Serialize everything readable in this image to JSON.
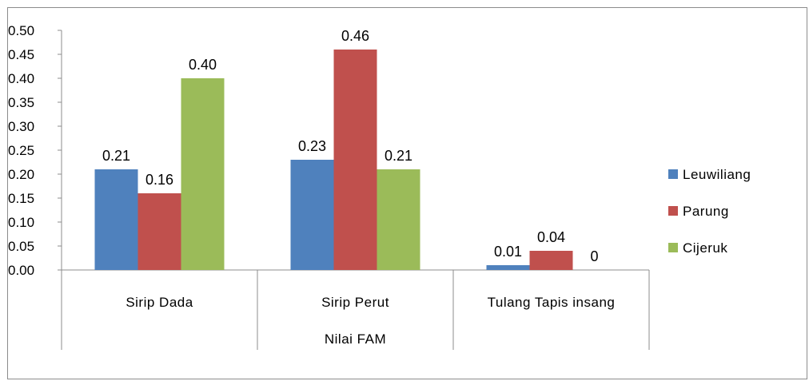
{
  "chart_data": {
    "type": "bar",
    "title": "",
    "xlabel": "Nilai FAM",
    "ylabel": "",
    "ylim": [
      0,
      0.5
    ],
    "yticks": [
      "0.00",
      "0.05",
      "0.10",
      "0.15",
      "0.20",
      "0.25",
      "0.30",
      "0.35",
      "0.40",
      "0.45",
      "0.50"
    ],
    "categories": [
      "Sirip Dada",
      "Sirip Perut",
      "Tulang Tapis insang"
    ],
    "series": [
      {
        "name": "Leuwiliang",
        "color": "#4f81bd",
        "values": [
          0.21,
          0.23,
          0.01
        ],
        "labels": [
          "0.21",
          "0.23",
          "0.01"
        ]
      },
      {
        "name": "Parung",
        "color": "#c0504d",
        "values": [
          0.16,
          0.46,
          0.04
        ],
        "labels": [
          "0.16",
          "0.46",
          "0.04"
        ]
      },
      {
        "name": "Cijeruk",
        "color": "#9bbb59",
        "values": [
          0.4,
          0.21,
          0
        ],
        "labels": [
          "0.40",
          "0.21",
          "0"
        ]
      }
    ],
    "legend_position": "right",
    "grid": false
  }
}
